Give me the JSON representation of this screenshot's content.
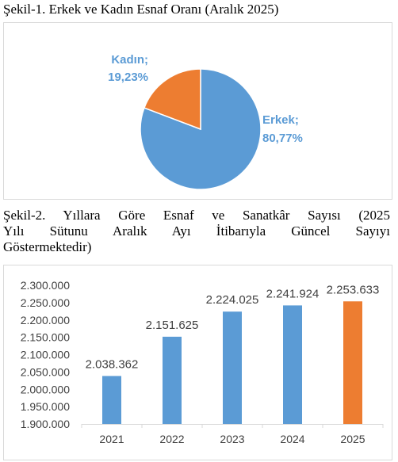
{
  "figure1": {
    "title": "Şekil-1. Erkek ve Kadın Esnaf Oranı (Aralık 2025)"
  },
  "figure2": {
    "title_lines": [
      "Şekil-2. Yıllara Göre Esnaf ve Sanatkâr Sayısı (2025",
      "Yılı Sütunu Aralık Ayı İtibarıyla Güncel Sayıyı",
      "Göstermektedir)"
    ]
  },
  "colors": {
    "blue": "#5b9bd5",
    "orange": "#ed7d31",
    "label_blue": "#5b9bd5"
  },
  "chart_data": [
    {
      "type": "pie",
      "title": "Şekil-1. Erkek ve Kadın Esnaf Oranı (Aralık 2025)",
      "slices": [
        {
          "name": "Erkek",
          "value": 80.77,
          "label_name": "Erkek;",
          "label_value": "80,77%",
          "color": "#5b9bd5"
        },
        {
          "name": "Kadın",
          "value": 19.23,
          "label_name": "Kadın;",
          "label_value": "19,23%",
          "color": "#ed7d31"
        }
      ]
    },
    {
      "type": "bar",
      "title": "Şekil-2. Yıllara Göre Esnaf ve Sanatkâr Sayısı (2025 Yılı Sütunu Aralık Ayı İtibarıyla Güncel Sayıyı Göstermektedir)",
      "categories": [
        "2021",
        "2022",
        "2023",
        "2024",
        "2025"
      ],
      "values": [
        2038362,
        2151625,
        2224025,
        2241924,
        2253633
      ],
      "value_labels": [
        "2.038.362",
        "2.151.625",
        "2.224.025",
        "2.241.924",
        "2.253.633"
      ],
      "bar_colors": [
        "#5b9bd5",
        "#5b9bd5",
        "#5b9bd5",
        "#5b9bd5",
        "#ed7d31"
      ],
      "ylim": [
        1900000,
        2300000
      ],
      "yticks": [
        1900000,
        1950000,
        2000000,
        2050000,
        2100000,
        2150000,
        2200000,
        2250000,
        2300000
      ],
      "ytick_labels": [
        "1.900.000",
        "1.950.000",
        "2.000.000",
        "2.050.000",
        "2.100.000",
        "2.150.000",
        "2.200.000",
        "2.250.000",
        "2.300.000"
      ],
      "grid": false,
      "legend": "none"
    }
  ]
}
